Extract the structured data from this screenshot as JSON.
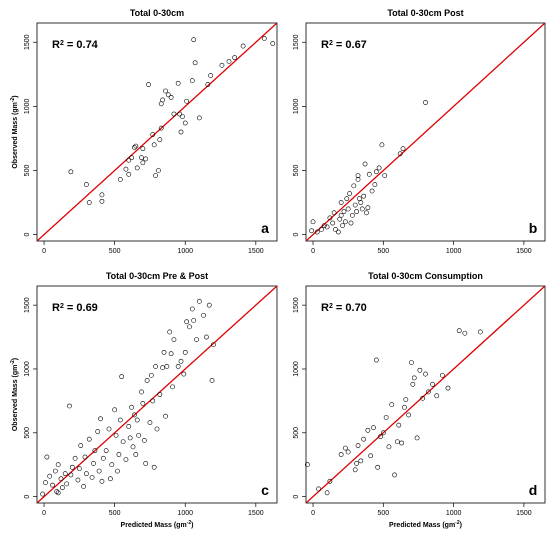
{
  "chart_data": [
    {
      "type": "scatter",
      "title": "Total 0-30cm",
      "panel_label": "a",
      "r2_label": "R",
      "r2_sup": "2",
      "r2_value": " = 0.74",
      "xlabel": "",
      "ylabel": "Observed Mass (gm",
      "ylabel_sup": "-2",
      "xlim": [
        -50,
        1650
      ],
      "ylim": [
        -50,
        1650
      ],
      "xticks": [
        0,
        500,
        1000,
        1500
      ],
      "yticks": [
        0,
        500,
        1000,
        1500
      ],
      "grid": false,
      "fit_line": {
        "x1": -50,
        "y1": -50,
        "x2": 1650,
        "y2": 1650,
        "color": "#e00000"
      },
      "points": [
        [
          190,
          490
        ],
        [
          300,
          390
        ],
        [
          320,
          250
        ],
        [
          410,
          260
        ],
        [
          410,
          310
        ],
        [
          540,
          430
        ],
        [
          580,
          510
        ],
        [
          600,
          580
        ],
        [
          600,
          470
        ],
        [
          620,
          600
        ],
        [
          640,
          680
        ],
        [
          650,
          690
        ],
        [
          660,
          520
        ],
        [
          690,
          600
        ],
        [
          700,
          560
        ],
        [
          700,
          670
        ],
        [
          720,
          590
        ],
        [
          740,
          1170
        ],
        [
          770,
          780
        ],
        [
          780,
          700
        ],
        [
          790,
          460
        ],
        [
          810,
          500
        ],
        [
          820,
          740
        ],
        [
          830,
          830
        ],
        [
          830,
          1020
        ],
        [
          840,
          1050
        ],
        [
          860,
          1120
        ],
        [
          880,
          1090
        ],
        [
          900,
          1070
        ],
        [
          920,
          940
        ],
        [
          950,
          1180
        ],
        [
          960,
          940
        ],
        [
          970,
          800
        ],
        [
          980,
          920
        ],
        [
          1000,
          870
        ],
        [
          1010,
          1040
        ],
        [
          1050,
          1200
        ],
        [
          1060,
          1520
        ],
        [
          1070,
          1340
        ],
        [
          1100,
          910
        ],
        [
          1160,
          1170
        ],
        [
          1180,
          1240
        ],
        [
          1260,
          1320
        ],
        [
          1310,
          1350
        ],
        [
          1350,
          1380
        ],
        [
          1410,
          1470
        ],
        [
          1560,
          1530
        ],
        [
          1620,
          1490
        ]
      ]
    },
    {
      "type": "scatter",
      "title": "Total 0-30cm Post",
      "panel_label": "b",
      "r2_label": "R",
      "r2_sup": "2",
      "r2_value": " = 0.67",
      "xlabel": "",
      "ylabel": "",
      "xlim": [
        -50,
        1650
      ],
      "ylim": [
        -50,
        1650
      ],
      "xticks": [
        0,
        500,
        1000,
        1500
      ],
      "yticks": [
        0,
        500,
        1000,
        1500
      ],
      "grid": false,
      "fit_line": {
        "x1": -50,
        "y1": -50,
        "x2": 1650,
        "y2": 1650,
        "color": "#e00000"
      },
      "points": [
        [
          -10,
          30
        ],
        [
          0,
          100
        ],
        [
          30,
          20
        ],
        [
          60,
          40
        ],
        [
          80,
          70
        ],
        [
          100,
          60
        ],
        [
          120,
          130
        ],
        [
          140,
          90
        ],
        [
          150,
          170
        ],
        [
          160,
          40
        ],
        [
          180,
          20
        ],
        [
          190,
          120
        ],
        [
          200,
          150
        ],
        [
          200,
          250
        ],
        [
          210,
          70
        ],
        [
          220,
          180
        ],
        [
          230,
          100
        ],
        [
          240,
          280
        ],
        [
          250,
          200
        ],
        [
          260,
          320
        ],
        [
          270,
          90
        ],
        [
          280,
          150
        ],
        [
          290,
          380
        ],
        [
          300,
          230
        ],
        [
          310,
          180
        ],
        [
          320,
          460
        ],
        [
          320,
          430
        ],
        [
          330,
          280
        ],
        [
          340,
          250
        ],
        [
          350,
          200
        ],
        [
          360,
          300
        ],
        [
          370,
          550
        ],
        [
          380,
          170
        ],
        [
          390,
          210
        ],
        [
          400,
          470
        ],
        [
          420,
          340
        ],
        [
          440,
          390
        ],
        [
          450,
          490
        ],
        [
          470,
          520
        ],
        [
          490,
          700
        ],
        [
          510,
          460
        ],
        [
          620,
          630
        ],
        [
          640,
          670
        ],
        [
          800,
          1030
        ]
      ]
    },
    {
      "type": "scatter",
      "title": "Total 0-30cm Pre & Post",
      "panel_label": "c",
      "r2_label": "R",
      "r2_sup": "2",
      "r2_value": " = 0.69",
      "xlabel": "Predicted Mass (gm",
      "xlabel_sup": "-2",
      "ylabel": "Observed Mass (gm",
      "ylabel_sup": "-2",
      "xlim": [
        -50,
        1650
      ],
      "ylim": [
        -50,
        1650
      ],
      "xticks": [
        0,
        500,
        1000,
        1500
      ],
      "yticks": [
        0,
        500,
        1000,
        1500
      ],
      "grid": false,
      "fit_line": {
        "x1": -50,
        "y1": -50,
        "x2": 1650,
        "y2": 1650,
        "color": "#e00000"
      },
      "points": [
        [
          -10,
          20
        ],
        [
          10,
          110
        ],
        [
          20,
          310
        ],
        [
          40,
          160
        ],
        [
          60,
          90
        ],
        [
          80,
          200
        ],
        [
          90,
          40
        ],
        [
          100,
          30
        ],
        [
          100,
          250
        ],
        [
          120,
          140
        ],
        [
          130,
          70
        ],
        [
          150,
          180
        ],
        [
          160,
          100
        ],
        [
          180,
          710
        ],
        [
          190,
          170
        ],
        [
          200,
          230
        ],
        [
          220,
          300
        ],
        [
          240,
          130
        ],
        [
          250,
          220
        ],
        [
          260,
          400
        ],
        [
          280,
          80
        ],
        [
          290,
          310
        ],
        [
          300,
          180
        ],
        [
          320,
          450
        ],
        [
          340,
          150
        ],
        [
          350,
          260
        ],
        [
          360,
          360
        ],
        [
          380,
          510
        ],
        [
          390,
          200
        ],
        [
          400,
          610
        ],
        [
          410,
          120
        ],
        [
          420,
          300
        ],
        [
          440,
          360
        ],
        [
          460,
          530
        ],
        [
          470,
          140
        ],
        [
          480,
          250
        ],
        [
          500,
          680
        ],
        [
          510,
          480
        ],
        [
          520,
          200
        ],
        [
          530,
          330
        ],
        [
          540,
          600
        ],
        [
          550,
          940
        ],
        [
          560,
          430
        ],
        [
          580,
          290
        ],
        [
          600,
          550
        ],
        [
          610,
          460
        ],
        [
          620,
          700
        ],
        [
          630,
          390
        ],
        [
          640,
          640
        ],
        [
          650,
          330
        ],
        [
          660,
          600
        ],
        [
          670,
          480
        ],
        [
          690,
          820
        ],
        [
          700,
          730
        ],
        [
          710,
          440
        ],
        [
          720,
          260
        ],
        [
          730,
          910
        ],
        [
          750,
          580
        ],
        [
          760,
          950
        ],
        [
          770,
          750
        ],
        [
          780,
          230
        ],
        [
          790,
          1020
        ],
        [
          800,
          530
        ],
        [
          820,
          800
        ],
        [
          840,
          1010
        ],
        [
          850,
          1130
        ],
        [
          860,
          630
        ],
        [
          870,
          1020
        ],
        [
          890,
          1290
        ],
        [
          900,
          1120
        ],
        [
          910,
          860
        ],
        [
          920,
          1230
        ],
        [
          950,
          1020
        ],
        [
          970,
          1060
        ],
        [
          990,
          960
        ],
        [
          1000,
          1130
        ],
        [
          1010,
          1370
        ],
        [
          1030,
          1330
        ],
        [
          1050,
          1470
        ],
        [
          1060,
          1380
        ],
        [
          1080,
          1230
        ],
        [
          1100,
          1530
        ],
        [
          1130,
          1420
        ],
        [
          1150,
          1250
        ],
        [
          1170,
          1500
        ],
        [
          1190,
          910
        ],
        [
          1200,
          1190
        ]
      ]
    },
    {
      "type": "scatter",
      "title": "Total 0-30cm Consumption",
      "panel_label": "d",
      "r2_label": "R",
      "r2_sup": "2",
      "r2_value": " = 0.70",
      "xlabel": "Predicted Mass (gm",
      "xlabel_sup": "-2",
      "ylabel": "",
      "xlim": [
        -50,
        1650
      ],
      "ylim": [
        -50,
        1650
      ],
      "xticks": [
        0,
        500,
        1000,
        1500
      ],
      "yticks": [
        0,
        500,
        1000,
        1500
      ],
      "grid": false,
      "fit_line": {
        "x1": -50,
        "y1": -50,
        "x2": 1650,
        "y2": 1650,
        "color": "#e00000"
      },
      "points": [
        [
          -40,
          250
        ],
        [
          40,
          60
        ],
        [
          100,
          30
        ],
        [
          120,
          120
        ],
        [
          200,
          330
        ],
        [
          230,
          380
        ],
        [
          250,
          350
        ],
        [
          300,
          210
        ],
        [
          310,
          260
        ],
        [
          320,
          400
        ],
        [
          340,
          280
        ],
        [
          360,
          450
        ],
        [
          390,
          520
        ],
        [
          410,
          320
        ],
        [
          430,
          540
        ],
        [
          450,
          1070
        ],
        [
          460,
          230
        ],
        [
          480,
          470
        ],
        [
          500,
          500
        ],
        [
          520,
          620
        ],
        [
          540,
          390
        ],
        [
          560,
          720
        ],
        [
          580,
          170
        ],
        [
          600,
          430
        ],
        [
          610,
          560
        ],
        [
          630,
          420
        ],
        [
          650,
          700
        ],
        [
          660,
          760
        ],
        [
          680,
          640
        ],
        [
          700,
          1050
        ],
        [
          710,
          880
        ],
        [
          720,
          930
        ],
        [
          740,
          460
        ],
        [
          760,
          990
        ],
        [
          780,
          770
        ],
        [
          800,
          960
        ],
        [
          820,
          820
        ],
        [
          850,
          880
        ],
        [
          880,
          790
        ],
        [
          920,
          950
        ],
        [
          960,
          850
        ],
        [
          1040,
          1300
        ],
        [
          1080,
          1280
        ],
        [
          1190,
          1290
        ]
      ]
    }
  ]
}
